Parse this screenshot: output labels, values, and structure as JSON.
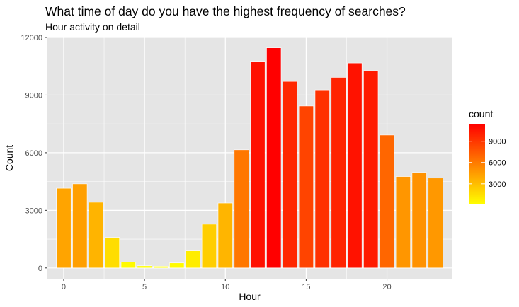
{
  "chart_data": {
    "type": "bar",
    "title": "What time of day do you have the highest frequency of searches?",
    "subtitle": "Hour activity on detail",
    "xlabel": "Hour",
    "ylabel": "Count",
    "x": [
      0,
      1,
      2,
      3,
      4,
      5,
      6,
      7,
      8,
      9,
      10,
      11,
      12,
      13,
      14,
      15,
      16,
      17,
      18,
      19,
      20,
      21,
      22,
      23
    ],
    "values": [
      4150,
      4380,
      3420,
      1590,
      310,
      110,
      90,
      260,
      890,
      2280,
      3380,
      6150,
      10760,
      11460,
      9710,
      8430,
      9270,
      9920,
      10670,
      10270,
      6920,
      4760,
      4970,
      4680
    ],
    "xlim": [
      -1.05,
      24.05
    ],
    "ylim": [
      -560,
      12000
    ],
    "x_ticks": [
      0,
      5,
      10,
      15,
      20
    ],
    "x_tick_labels": [
      "0",
      "5",
      "10",
      "15",
      "20"
    ],
    "y_ticks": [
      0,
      3000,
      6000,
      9000,
      12000
    ],
    "y_tick_labels": [
      "0",
      "3000",
      "6000",
      "9000",
      "12000"
    ],
    "grid": true,
    "legend": {
      "title": "count",
      "position": "right",
      "type": "colorbar",
      "low_color": "#FFFF00",
      "high_color": "#FF0000",
      "range": [
        90,
        11460
      ],
      "breaks": [
        3000,
        6000,
        9000
      ],
      "break_labels": [
        "3000",
        "6000",
        "9000"
      ]
    },
    "colors": {
      "panel_background": "#E5E5E5",
      "grid_major": "#FFFFFF",
      "bar_border": "#FFFFFF"
    }
  }
}
